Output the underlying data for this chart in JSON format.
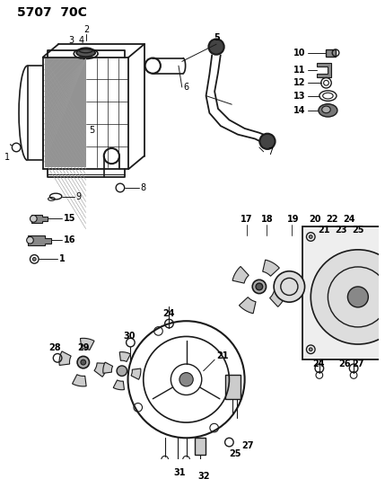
{
  "title": "5707  70C",
  "bg_color": "#ffffff",
  "line_color": "#1a1a1a",
  "text_color": "#000000",
  "title_fontsize": 10,
  "label_fontsize": 7,
  "figsize": [
    4.29,
    5.33
  ],
  "dpi": 100
}
